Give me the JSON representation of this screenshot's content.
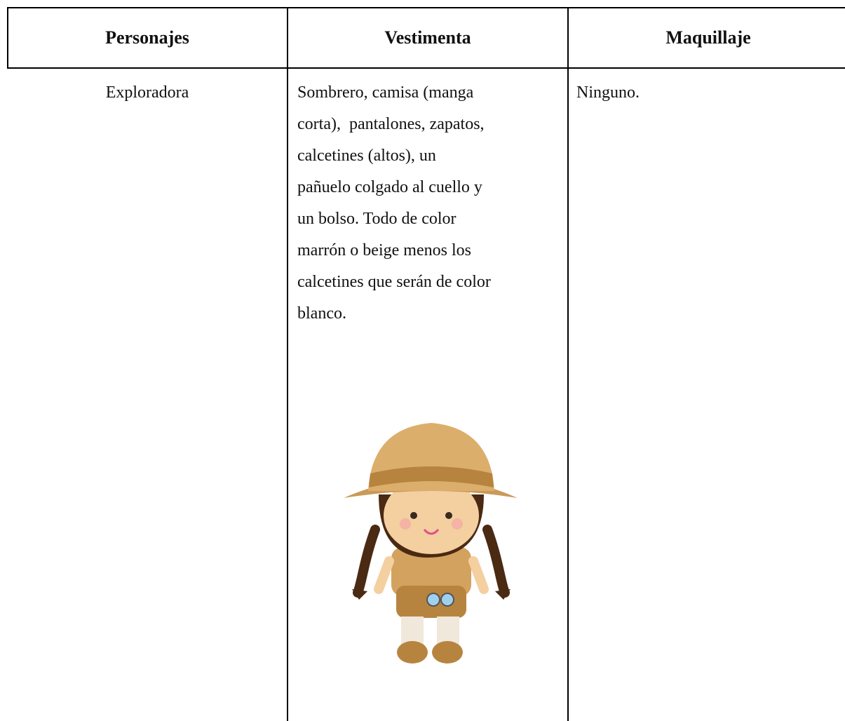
{
  "table": {
    "headers": [
      "Personajes",
      "Vestimenta",
      "Maquillaje"
    ],
    "rows": [
      [
        "Exploradora",
        [
          "Sombrero, camisa (manga",
          "corta),  pantalones, zapatos,",
          "calcetines (altos), un",
          "pañuelo colgado al cuello y",
          "un bolso. Todo de color",
          "marrón o beige menos los",
          "calcetines que serán de color",
          "blanco."
        ],
        "Ninguno."
      ]
    ]
  }
}
